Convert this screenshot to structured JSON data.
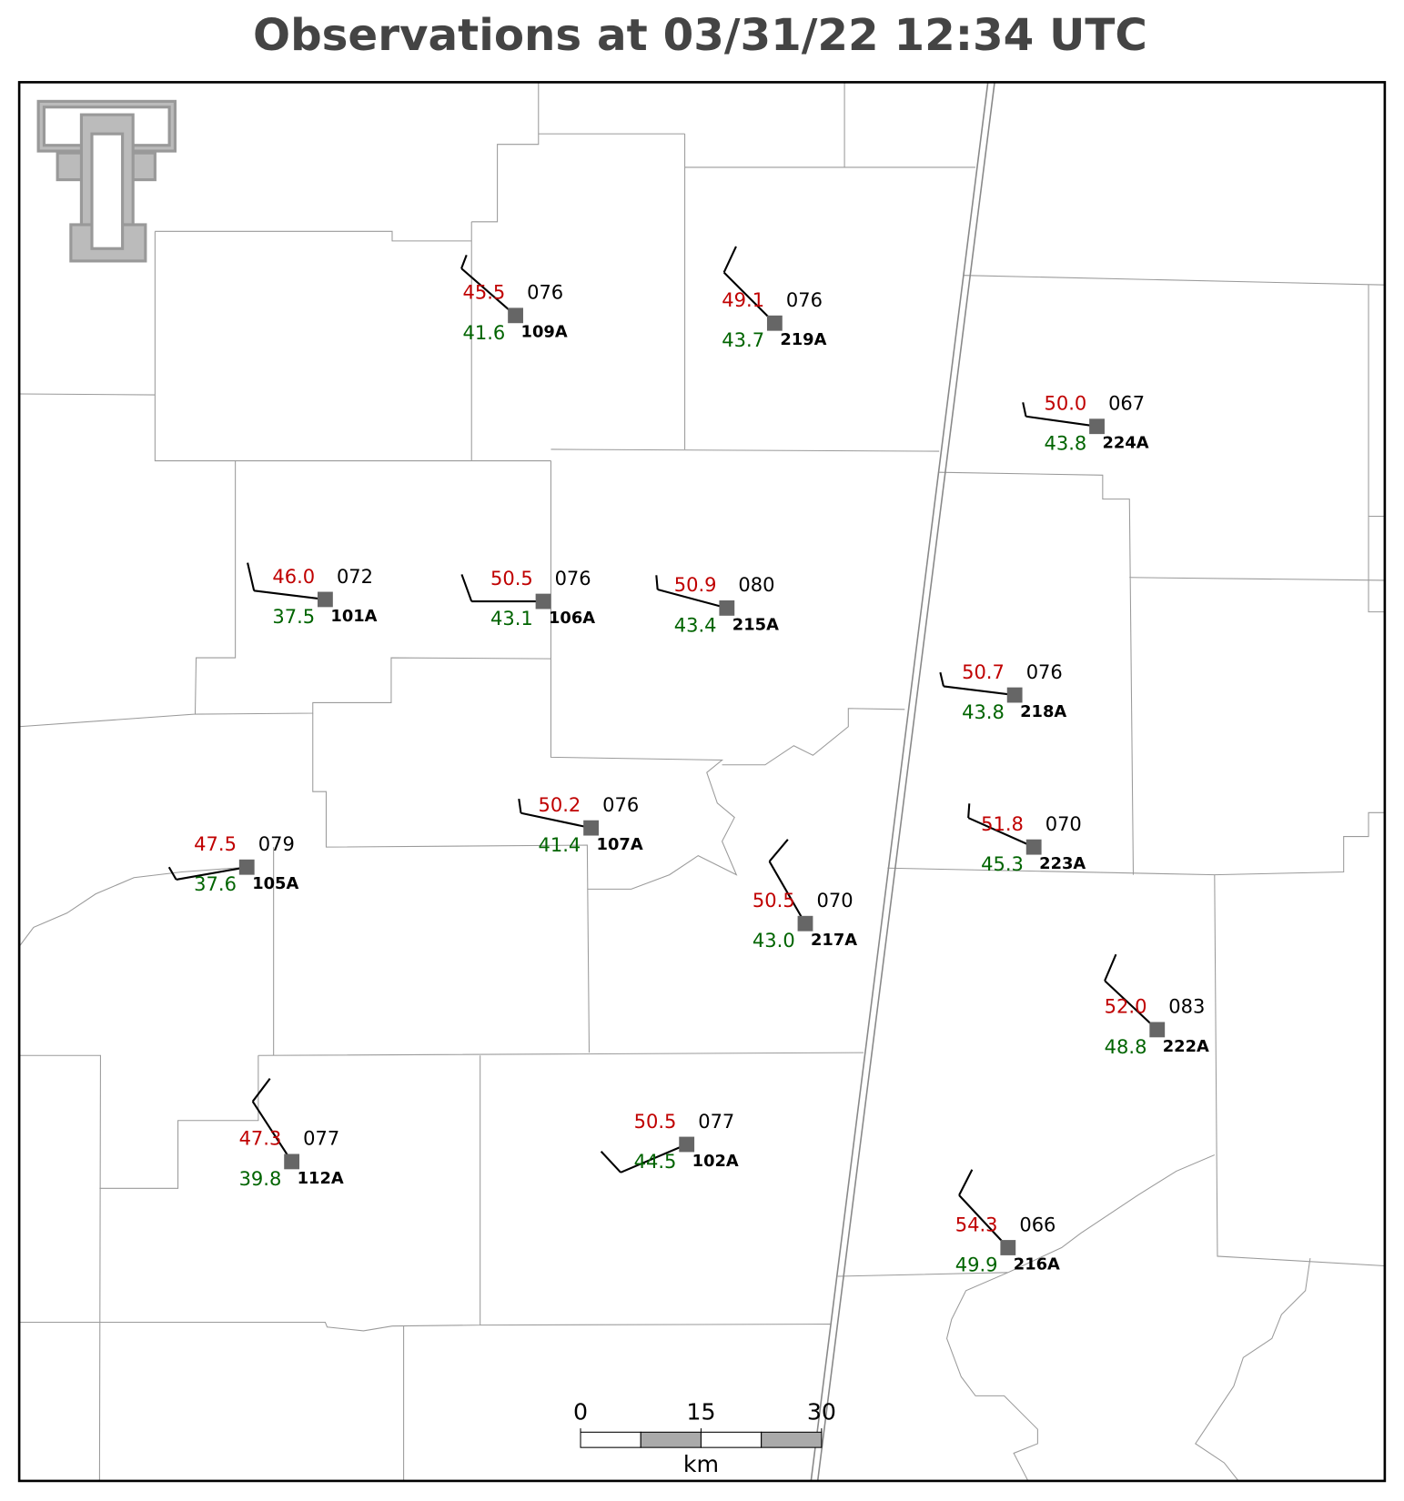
{
  "title": "Observations at 03/31/22 12:34 UTC",
  "stations": [
    {
      "id": "109A",
      "temperature": "45.5",
      "dewpoint": "41.6",
      "pressure": "076",
      "wind_direction": 311,
      "wind_speed": 5
    },
    {
      "id": "219A",
      "temperature": "49.1",
      "dewpoint": "43.7",
      "pressure": "076",
      "wind_direction": 315,
      "wind_speed": 10
    },
    {
      "id": "224A",
      "temperature": "50.0",
      "dewpoint": "43.8",
      "pressure": "067",
      "wind_direction": 278,
      "wind_speed": 5
    },
    {
      "id": "101A",
      "temperature": "46.0",
      "dewpoint": "37.5",
      "pressure": "072",
      "wind_direction": 277,
      "wind_speed": 10
    },
    {
      "id": "106A",
      "temperature": "50.5",
      "dewpoint": "43.1",
      "pressure": "076",
      "wind_direction": 270,
      "wind_speed": 10
    },
    {
      "id": "215A",
      "temperature": "50.9",
      "dewpoint": "43.4",
      "pressure": "080",
      "wind_direction": 285,
      "wind_speed": 5
    },
    {
      "id": "218A",
      "temperature": "50.7",
      "dewpoint": "43.8",
      "pressure": "076",
      "wind_direction": 277,
      "wind_speed": 5
    },
    {
      "id": "223A",
      "temperature": "51.8",
      "dewpoint": "45.3",
      "pressure": "070",
      "wind_direction": 294,
      "wind_speed": 5
    },
    {
      "id": "107A",
      "temperature": "50.2",
      "dewpoint": "41.4",
      "pressure": "076",
      "wind_direction": 282,
      "wind_speed": 5
    },
    {
      "id": "105A",
      "temperature": "47.5",
      "dewpoint": "37.6",
      "pressure": "079",
      "wind_direction": 260,
      "wind_speed": 5
    },
    {
      "id": "217A",
      "temperature": "50.5",
      "dewpoint": "43.0",
      "pressure": "070",
      "wind_direction": 330,
      "wind_speed": 10
    },
    {
      "id": "222A",
      "temperature": "52.0",
      "dewpoint": "48.8",
      "pressure": "083",
      "wind_direction": 313,
      "wind_speed": 10
    },
    {
      "id": "112A",
      "temperature": "47.3",
      "dewpoint": "39.8",
      "pressure": "077",
      "wind_direction": 327,
      "wind_speed": 10
    },
    {
      "id": "102A",
      "temperature": "50.5",
      "dewpoint": "44.5",
      "pressure": "077",
      "wind_direction": 247,
      "wind_speed": 10
    },
    {
      "id": "216A",
      "temperature": "54.3",
      "dewpoint": "49.9",
      "pressure": "066",
      "wind_direction": 317,
      "wind_speed": 10
    }
  ],
  "scale_bar": {
    "ticks": [
      0,
      15,
      30
    ],
    "unit": "km"
  }
}
